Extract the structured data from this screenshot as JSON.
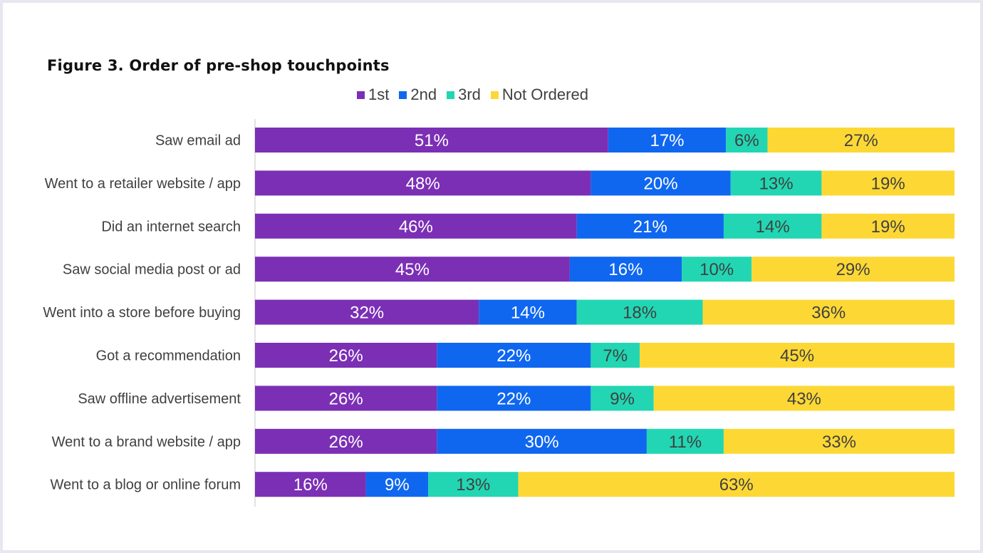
{
  "title": "Figure 3. Order of pre-shop touchpoints",
  "chart_data": {
    "type": "bar",
    "orientation": "horizontal",
    "stacked": true,
    "title": "Figure 3. Order of pre-shop touchpoints",
    "xlabel": "",
    "ylabel": "",
    "xlim": [
      0,
      100
    ],
    "grid": false,
    "legend_position": "top",
    "value_suffix": "%",
    "categories": [
      "Saw email ad",
      "Went to a retailer website / app",
      "Did an internet search",
      "Saw social media post or ad",
      "Went into a store before buying",
      "Got a recommendation",
      "Saw offline advertisement",
      "Went to a brand website / app",
      "Went to a blog or online forum"
    ],
    "series": [
      {
        "name": "1st",
        "color": "#7b2fb5",
        "label_color": "#ffffff",
        "values": [
          51,
          48,
          46,
          45,
          32,
          26,
          26,
          26,
          16
        ]
      },
      {
        "name": "2nd",
        "color": "#0f67f0",
        "label_color": "#ffffff",
        "values": [
          17,
          20,
          21,
          16,
          14,
          22,
          22,
          30,
          9
        ]
      },
      {
        "name": "3rd",
        "color": "#22d6b3",
        "label_color": "#404040",
        "values": [
          6,
          13,
          14,
          10,
          18,
          7,
          9,
          11,
          13
        ]
      },
      {
        "name": "Not Ordered",
        "color": "#fdd835",
        "label_color": "#404040",
        "values": [
          27,
          19,
          19,
          29,
          36,
          45,
          43,
          33,
          63
        ]
      }
    ]
  }
}
